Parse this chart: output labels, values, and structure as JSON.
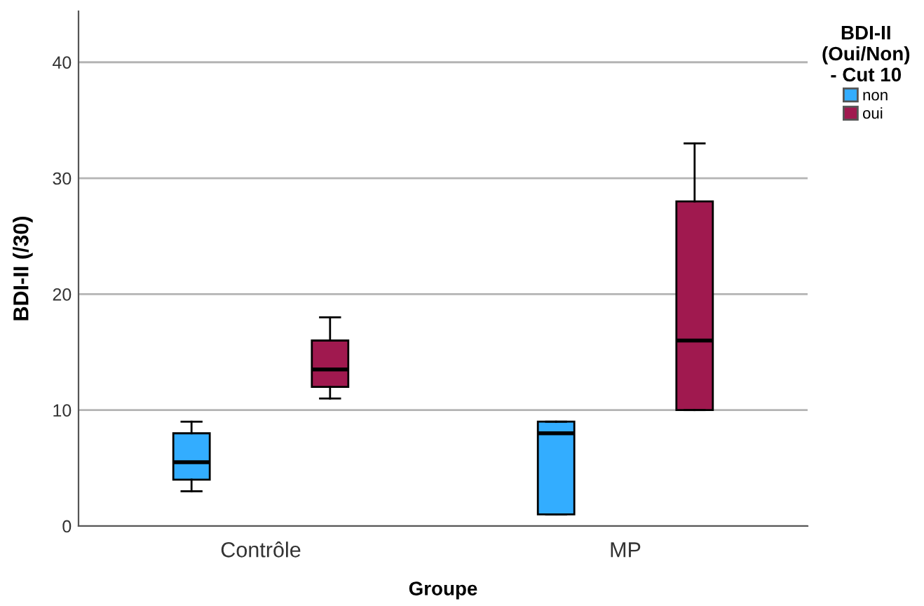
{
  "chart_data": {
    "type": "box",
    "xlabel": "Groupe",
    "ylabel": "BDI-II (/30)",
    "legend_title": "BDI-II\n(Oui/Non)\n- Cut 10",
    "categories": [
      "Contrôle",
      "MP"
    ],
    "series": [
      {
        "name": "non",
        "color": "#33adff",
        "boxes": [
          {
            "low": 3,
            "q1": 4,
            "median": 5.5,
            "q3": 8,
            "high": 9
          },
          {
            "low": 1,
            "q1": 1,
            "median": 8,
            "q3": 9,
            "high": 9
          }
        ]
      },
      {
        "name": "oui",
        "color": "#a0194f",
        "boxes": [
          {
            "low": 11,
            "q1": 12,
            "median": 13.5,
            "q3": 16,
            "high": 18
          },
          {
            "low": 10,
            "q1": 10,
            "median": 16,
            "q3": 28,
            "high": 33
          }
        ]
      }
    ],
    "ylim": [
      0,
      44.4
    ],
    "yticks": [
      0,
      10,
      20,
      30,
      40
    ],
    "grid": "y",
    "legend": "right"
  }
}
